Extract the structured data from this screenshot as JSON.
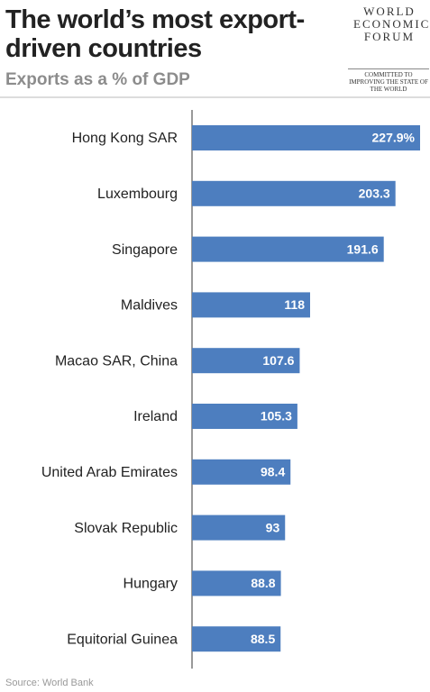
{
  "chart_data": {
    "type": "bar",
    "orientation": "horizontal",
    "title": "The world’s most export-driven countries",
    "subtitle": "Exports as a % of GDP",
    "source": "Source: World Bank",
    "categories": [
      "Hong Kong SAR",
      "Luxembourg",
      "Singapore",
      "Maldives",
      "Macao SAR, China",
      "Ireland",
      "United Arab Emirates",
      "Slovak Republic",
      "Hungary",
      "Equitorial Guinea"
    ],
    "values": [
      227.9,
      203.3,
      191.6,
      118,
      107.6,
      105.3,
      98.4,
      93,
      88.8,
      88.5
    ],
    "value_labels": [
      "227.9%",
      "203.3",
      "191.6",
      "118",
      "107.6",
      "105.3",
      "98.4",
      "93",
      "88.8",
      "88.5"
    ],
    "color": "#4d7ebf"
  },
  "logo": {
    "name": "WORLD ECONOMIC FORUM",
    "tagline": "COMMITTED TO IMPROVING THE STATE OF THE WORLD"
  }
}
